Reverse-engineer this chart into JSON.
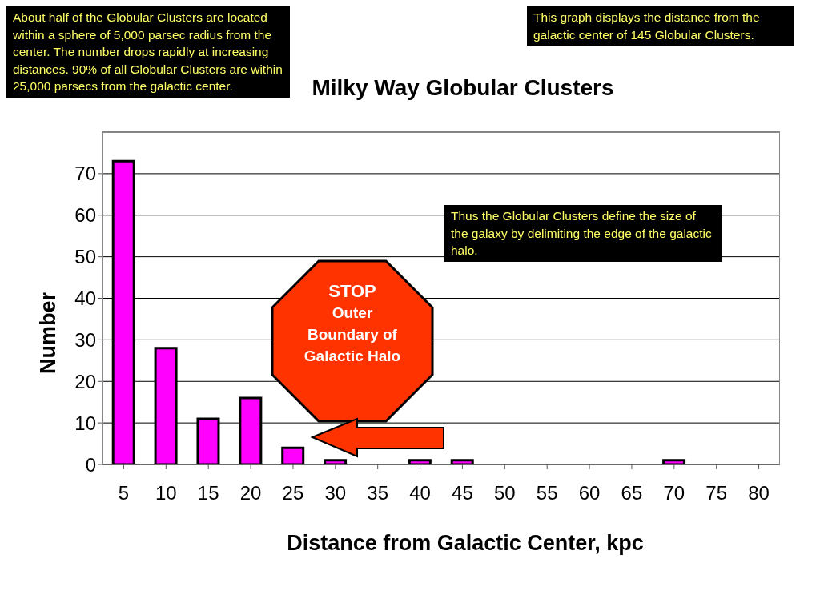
{
  "chart_data": {
    "type": "bar",
    "title": "Milky Way Globular Clusters",
    "xlabel": "Distance from Galactic Center, kpc",
    "ylabel": "Number",
    "categories": [
      "5",
      "10",
      "15",
      "20",
      "25",
      "30",
      "35",
      "40",
      "45",
      "50",
      "55",
      "60",
      "65",
      "70",
      "75",
      "80"
    ],
    "values": [
      73,
      28,
      11,
      16,
      4,
      1,
      0,
      1,
      1,
      0,
      0,
      0,
      0,
      1,
      0,
      0
    ],
    "color": "#ff00ff",
    "ylim": [
      0,
      80
    ],
    "yticks": [
      0,
      10,
      20,
      30,
      40,
      50,
      60,
      70
    ],
    "grid": "y",
    "legend": false,
    "annotations": [
      "About half of the Globular Clusters are located within a sphere of 5,000 parsec radius from the center.  The number drops rapidly at increasing distances.  90% of all Globular Clusters are within 25,000 parsecs from the galactic center.",
      "This graph displays the distance from the galactic center of 145 Globular Clusters.",
      "Thus the Globular Clusters define the size of the galaxy by delimiting the edge of the galactic halo.",
      "STOP\nOuter Boundary of Galactic Halo"
    ]
  }
}
